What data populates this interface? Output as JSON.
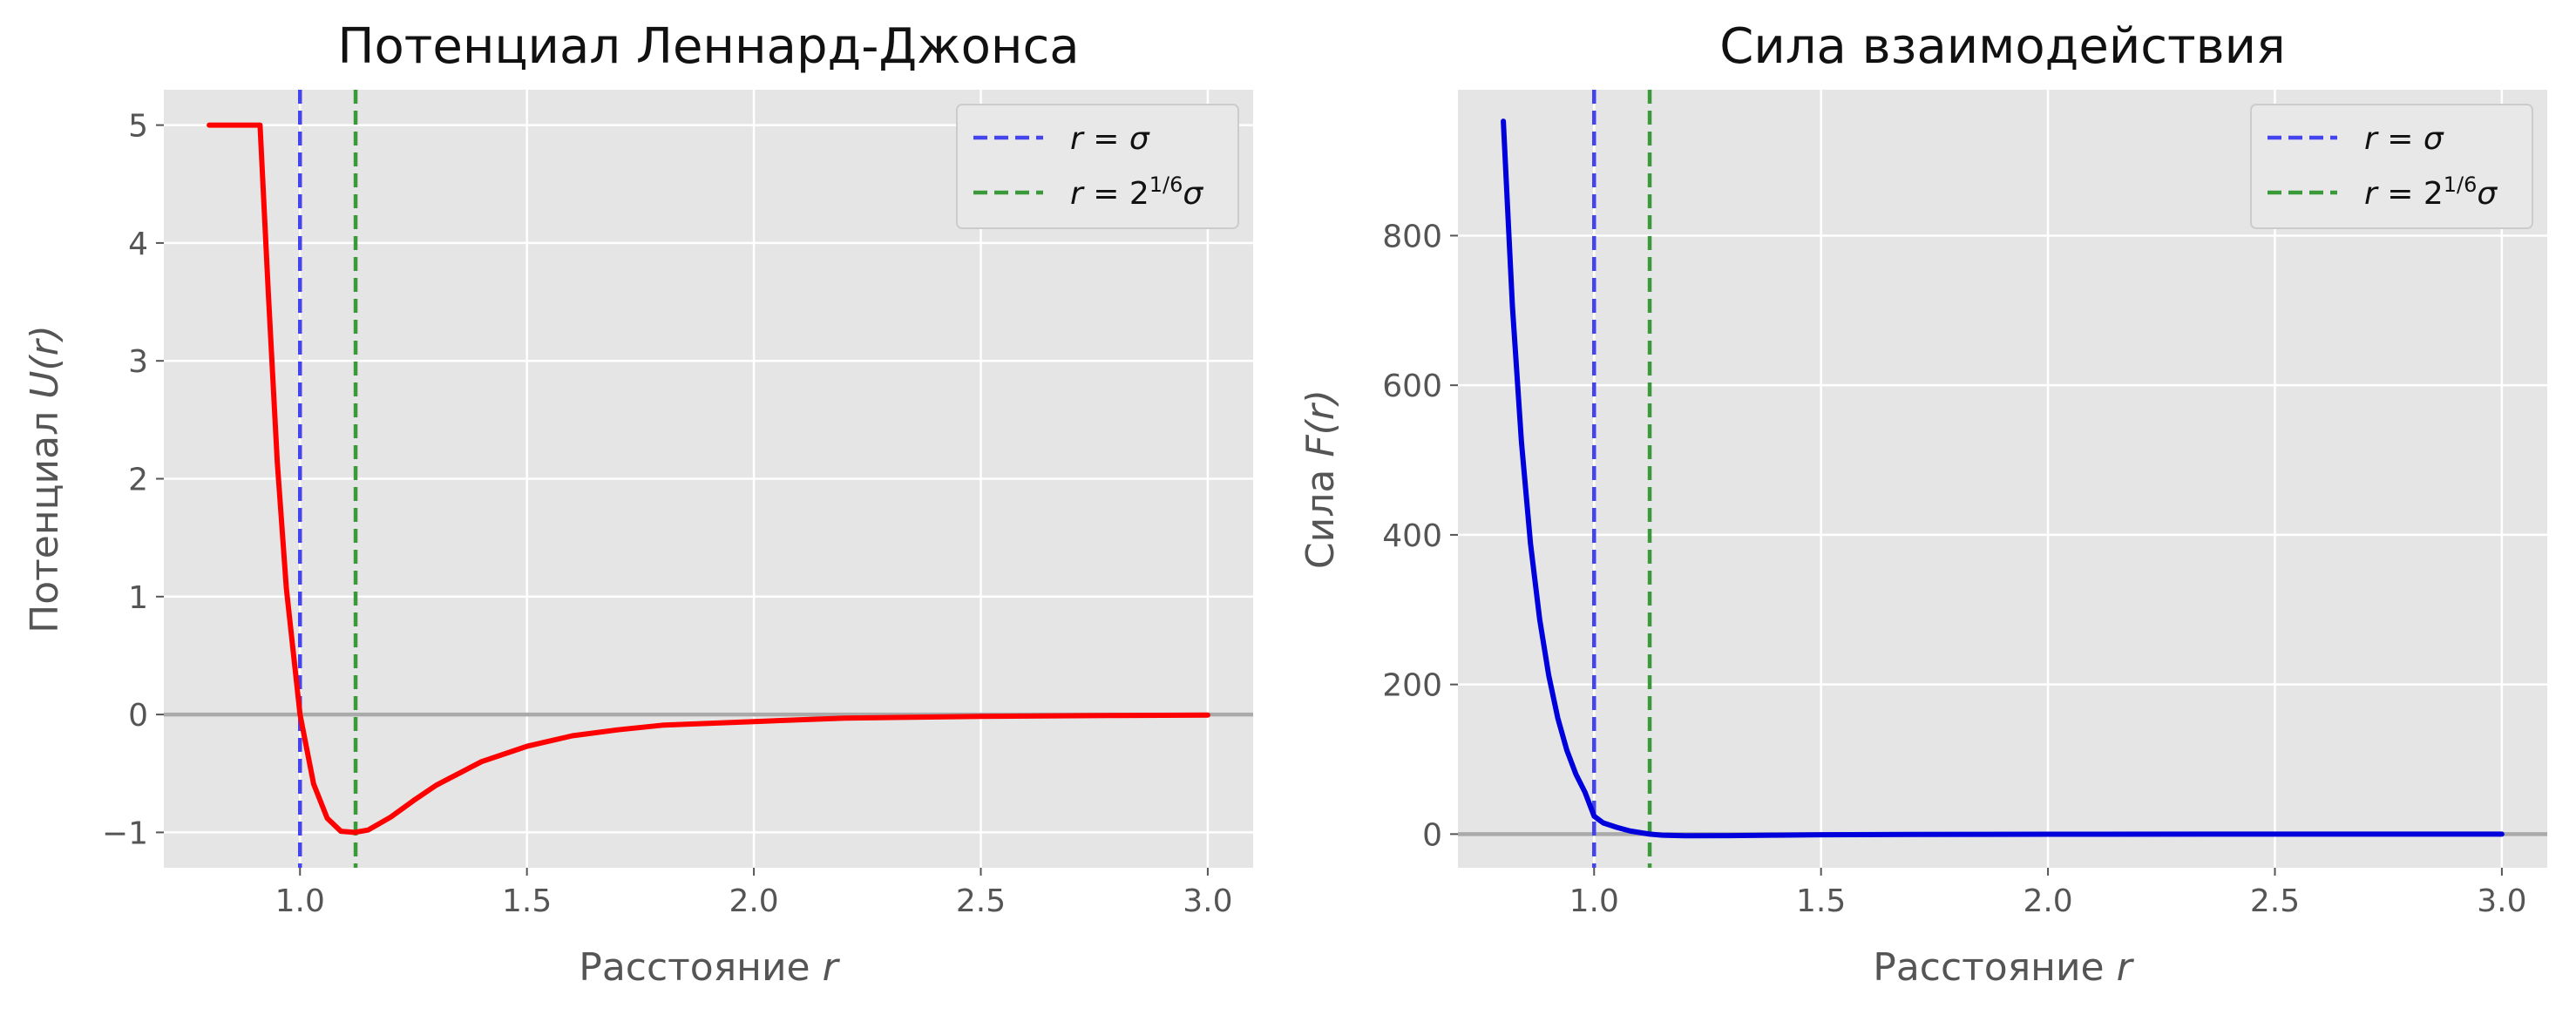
{
  "colors": {
    "background": "#e5e5e5",
    "grid": "#ffffff",
    "zero_line": "#aaaaaa",
    "sigma_line": "#4444ee",
    "min_line": "#3a9a3a",
    "potential_curve": "#ff0000",
    "force_curve": "#0000dd"
  },
  "chart_data": [
    {
      "type": "line",
      "title": "Потенциал Леннард-Джонса",
      "xlabel_text": "Расстояние",
      "xlabel_var": "r",
      "ylabel_text": "Потенциал",
      "ylabel_var": "U(r)",
      "xlim": [
        0.7,
        3.1
      ],
      "ylim": [
        -1.3,
        5.3
      ],
      "xticks": [
        1.0,
        1.5,
        2.0,
        2.5,
        3.0
      ],
      "xtick_labels": [
        "1.0",
        "1.5",
        "2.0",
        "2.5",
        "3.0"
      ],
      "yticks": [
        -1,
        0,
        1,
        2,
        3,
        4,
        5
      ],
      "ytick_labels": [
        "−1",
        "0",
        "1",
        "2",
        "3",
        "4",
        "5"
      ],
      "grid": true,
      "legend_position": "upper right",
      "legend": [
        {
          "label": "r = σ",
          "style": "dashed",
          "color": "#4444ee"
        },
        {
          "label": "r = 2^{1/6}σ",
          "style": "dashed",
          "color": "#3a9a3a"
        }
      ],
      "vlines": [
        1.0,
        1.1225
      ],
      "hline": 0,
      "series": [
        {
          "color": "#ff0000",
          "x": [
            0.8,
            0.85,
            0.9,
            0.912,
            0.93,
            0.95,
            0.97,
            1.0,
            1.03,
            1.06,
            1.09,
            1.12,
            1.15,
            1.2,
            1.25,
            1.3,
            1.4,
            1.5,
            1.6,
            1.7,
            1.8,
            2.0,
            2.2,
            2.5,
            2.8,
            3.0
          ],
          "y": [
            5.0,
            5.0,
            5.0,
            5.0,
            3.59,
            2.14,
            1.07,
            0.0,
            -0.59,
            -0.88,
            -0.99,
            -1.0,
            -0.98,
            -0.87,
            -0.73,
            -0.6,
            -0.4,
            -0.27,
            -0.18,
            -0.13,
            -0.09,
            -0.06,
            -0.03,
            -0.016,
            -0.008,
            -0.005
          ]
        }
      ]
    },
    {
      "type": "line",
      "title": "Сила взаимодействия",
      "xlabel_text": "Расстояние",
      "xlabel_var": "r",
      "ylabel_text": "Сила",
      "ylabel_var": "F(r)",
      "xlim": [
        0.7,
        3.1
      ],
      "ylim": [
        -45,
        995
      ],
      "xticks": [
        1.0,
        1.5,
        2.0,
        2.5,
        3.0
      ],
      "xtick_labels": [
        "1.0",
        "1.5",
        "2.0",
        "2.5",
        "3.0"
      ],
      "yticks": [
        0,
        200,
        400,
        600,
        800
      ],
      "ytick_labels": [
        "0",
        "200",
        "400",
        "600",
        "800"
      ],
      "grid": true,
      "legend_position": "upper right",
      "legend": [
        {
          "label": "r = σ",
          "style": "dashed",
          "color": "#4444ee"
        },
        {
          "label": "r = 2^{1/6}σ",
          "style": "dashed",
          "color": "#3a9a3a"
        }
      ],
      "vlines": [
        1.0,
        1.1225
      ],
      "hline": 0,
      "series": [
        {
          "color": "#0000dd",
          "x": [
            0.8,
            0.82,
            0.84,
            0.86,
            0.88,
            0.9,
            0.92,
            0.94,
            0.96,
            0.98,
            1.0,
            1.02,
            1.05,
            1.08,
            1.1225,
            1.15,
            1.2,
            1.3,
            1.4,
            1.5,
            1.7,
            2.0,
            2.5,
            3.0
          ],
          "y": [
            953,
            706,
            524,
            388,
            287,
            212,
            155,
            112,
            80,
            56,
            24,
            15,
            9,
            4,
            0,
            -1.5,
            -2.3,
            -2.0,
            -1.4,
            -0.9,
            -0.4,
            -0.2,
            -0.05,
            0
          ]
        }
      ]
    }
  ]
}
